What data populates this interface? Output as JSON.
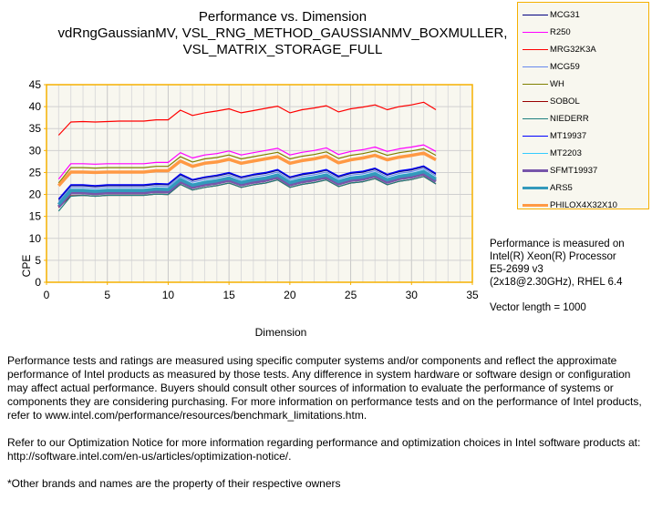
{
  "chart_data": {
    "type": "line",
    "title": [
      "Performance vs. Dimension",
      "vdRngGaussianMV,  VSL_RNG_METHOD_GAUSSIANMV_BOXMULLER,",
      "VSL_MATRIX_STORAGE_FULL"
    ],
    "xlabel": "Dimension",
    "ylabel": "CPE",
    "xlim": [
      0,
      35
    ],
    "ylim": [
      0,
      45
    ],
    "xticks": [
      0,
      5,
      10,
      15,
      20,
      25,
      30,
      35
    ],
    "yticks": [
      0,
      5,
      10,
      15,
      20,
      25,
      30,
      35,
      40,
      45
    ],
    "grid": true,
    "legend_position": "top-right outside",
    "x": [
      1,
      2,
      3,
      4,
      5,
      6,
      7,
      8,
      9,
      10,
      11,
      12,
      13,
      14,
      15,
      16,
      17,
      18,
      19,
      20,
      21,
      22,
      23,
      24,
      25,
      26,
      27,
      28,
      29,
      30,
      31,
      32
    ],
    "series": [
      {
        "name": "MCG31",
        "color": "#000080",
        "width": 1.2,
        "values": [
          18.8,
          22,
          22,
          21.8,
          22,
          22,
          22,
          22,
          22.3,
          22.2,
          24.5,
          23.2,
          23.8,
          24.2,
          24.8,
          23.8,
          24.4,
          24.8,
          25.5,
          23.8,
          24.5,
          24.9,
          25.5,
          24,
          24.8,
          25.1,
          25.8,
          24.4,
          25.2,
          25.6,
          26.3,
          24.6
        ]
      },
      {
        "name": "R250",
        "color": "#ff00ff",
        "width": 1.2,
        "values": [
          23.5,
          27,
          27,
          26.9,
          27,
          27,
          27,
          27,
          27.3,
          27.3,
          29.5,
          28.3,
          29,
          29.3,
          29.9,
          29,
          29.5,
          30,
          30.5,
          29,
          29.6,
          30,
          30.6,
          29.1,
          29.8,
          30.2,
          30.8,
          29.8,
          30.4,
          30.8,
          31.3,
          29.8
        ]
      },
      {
        "name": "MRG32K3A",
        "color": "#ff0000",
        "width": 1.2,
        "values": [
          33.5,
          36.5,
          36.6,
          36.5,
          36.6,
          36.7,
          36.7,
          36.7,
          37,
          37,
          39.2,
          38,
          38.6,
          39,
          39.5,
          38.6,
          39.1,
          39.6,
          40.1,
          38.6,
          39.3,
          39.7,
          40.2,
          38.8,
          39.5,
          39.9,
          40.4,
          39.3,
          40,
          40.4,
          41,
          39.3
        ]
      },
      {
        "name": "MCG59",
        "color": "#6688ee",
        "width": 1.2,
        "values": [
          18.4,
          21.6,
          21.6,
          21.4,
          21.6,
          21.6,
          21.6,
          21.6,
          21.9,
          21.8,
          24.1,
          22.8,
          23.4,
          23.8,
          24.4,
          23.4,
          24,
          24.4,
          25.1,
          23.4,
          24.1,
          24.5,
          25.1,
          23.6,
          24.4,
          24.7,
          25.4,
          24,
          24.8,
          25.2,
          25.9,
          24.2
        ]
      },
      {
        "name": "WH",
        "color": "#808000",
        "width": 1.2,
        "values": [
          22.6,
          26.1,
          26.1,
          26,
          26.1,
          26.1,
          26.1,
          26.1,
          26.4,
          26.4,
          28.6,
          27.4,
          28.1,
          28.4,
          29,
          28.1,
          28.6,
          29.1,
          29.6,
          28.1,
          28.7,
          29.1,
          29.7,
          28.2,
          28.9,
          29.3,
          29.9,
          28.9,
          29.5,
          29.9,
          30.4,
          28.9
        ]
      },
      {
        "name": "SOBOL",
        "color": "#990000",
        "width": 1.2,
        "values": [
          17,
          19.7,
          19.8,
          19.6,
          19.8,
          19.8,
          19.8,
          19.8,
          20.1,
          20,
          22.3,
          21,
          21.6,
          22,
          22.6,
          21.6,
          22.2,
          22.6,
          23.3,
          21.6,
          22.3,
          22.7,
          23.3,
          21.8,
          22.6,
          22.9,
          23.6,
          22.2,
          23,
          23.4,
          24.1,
          22.4
        ]
      },
      {
        "name": "NIEDERR",
        "color": "#1f7f7f",
        "width": 1.2,
        "values": [
          16.2,
          19.6,
          19.8,
          19.6,
          19.8,
          19.8,
          19.8,
          19.8,
          20.1,
          20,
          22.3,
          21,
          21.6,
          22,
          22.6,
          21.6,
          22.2,
          22.6,
          23.3,
          21.6,
          22.3,
          22.7,
          23.3,
          21.8,
          22.6,
          22.9,
          23.6,
          22.2,
          23,
          23.4,
          24.1,
          22.4
        ]
      },
      {
        "name": "MT19937",
        "color": "#0000ff",
        "width": 1.2,
        "values": [
          19,
          22.2,
          22.2,
          22,
          22.2,
          22.2,
          22.2,
          22.2,
          22.5,
          22.4,
          24.7,
          23.4,
          24,
          24.4,
          25,
          24,
          24.6,
          25,
          25.7,
          24,
          24.7,
          25.1,
          25.7,
          24.2,
          25,
          25.3,
          26,
          24.6,
          25.4,
          25.8,
          26.5,
          24.8
        ]
      },
      {
        "name": "MT2203",
        "color": "#33ccff",
        "width": 1.2,
        "values": [
          18,
          21.2,
          21.2,
          21,
          21.2,
          21.2,
          21.2,
          21.2,
          21.5,
          21.4,
          23.7,
          22.4,
          23,
          23.4,
          24,
          23,
          23.6,
          24,
          24.7,
          23,
          23.7,
          24.1,
          24.7,
          23.2,
          24,
          24.3,
          25,
          23.6,
          24.4,
          24.8,
          25.5,
          23.8
        ]
      },
      {
        "name": "SFMT19937",
        "color": "#7755aa",
        "width": 3.5,
        "values": [
          17.2,
          20.4,
          20.4,
          20.2,
          20.4,
          20.4,
          20.4,
          20.4,
          20.7,
          20.6,
          22.9,
          21.6,
          22.2,
          22.6,
          23.2,
          22.2,
          22.8,
          23.2,
          23.9,
          22.2,
          22.9,
          23.3,
          23.9,
          22.4,
          23.2,
          23.5,
          24.2,
          22.8,
          23.6,
          24,
          24.7,
          23
        ]
      },
      {
        "name": "ARS5",
        "color": "#3399bb",
        "width": 3.5,
        "values": [
          17.7,
          20.9,
          20.9,
          20.7,
          20.9,
          20.9,
          20.9,
          20.9,
          21.2,
          21.1,
          23.4,
          22.1,
          22.7,
          23.1,
          23.7,
          22.7,
          23.3,
          23.7,
          24.4,
          22.7,
          23.4,
          23.8,
          24.4,
          22.9,
          23.7,
          24,
          24.7,
          23.3,
          24.1,
          24.5,
          25.2,
          23.5
        ]
      },
      {
        "name": "PHILOX4X32X10",
        "color": "#ff9944",
        "width": 3.5,
        "values": [
          22,
          25.1,
          25.1,
          25,
          25.1,
          25.1,
          25.1,
          25.1,
          25.4,
          25.4,
          27.6,
          26.4,
          27.1,
          27.4,
          28,
          27.1,
          27.6,
          28.1,
          28.6,
          27.1,
          27.7,
          28.1,
          28.7,
          27.2,
          27.9,
          28.3,
          28.9,
          27.9,
          28.5,
          28.9,
          29.4,
          27.9
        ]
      }
    ]
  },
  "info": [
    "Performance is measured on",
    "Intel(R) Xeon(R) Processor",
    "E5-2699 v3",
    "(2x18@2.30GHz),  RHEL 6.4",
    "",
    "Vector length = 1000"
  ],
  "footer": [
    "Performance tests and ratings are measured using specific computer systems and/or components and reflect the approximate performance of Intel products as measured by those tests. Any difference in system hardware or software design or configuration may affect actual performance. Buyers should consult other sources of information to evaluate the performance of systems or components they are considering purchasing. For more information on performance tests and on the performance of Intel products, refer to www.intel.com/performance/resources/benchmark_limitations.htm.",
    "Refer to our Optimization Notice for more information regarding performance and optimization choices in Intel software products at: http://software.intel.com/en-us/articles/optimization-notice/.",
    "*Other brands and names are the property of their respective owners"
  ]
}
